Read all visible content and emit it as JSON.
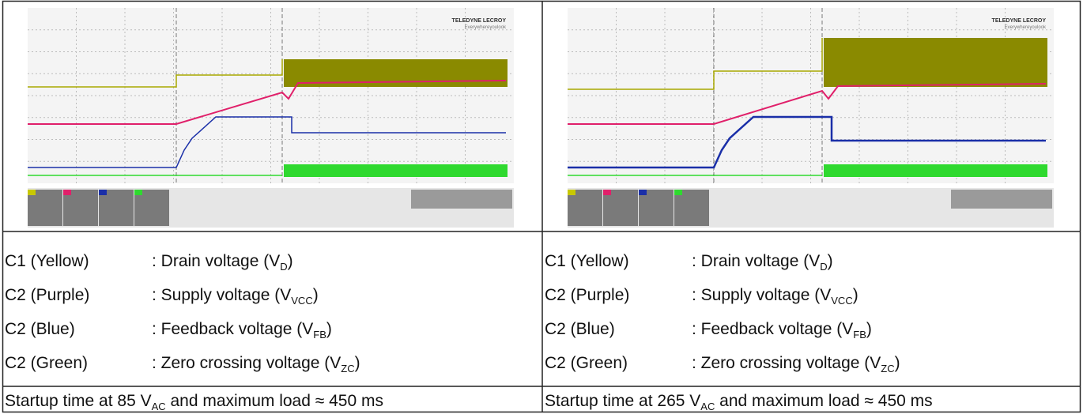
{
  "panels": [
    {
      "scope": {
        "brand": "TELEDYNE LECROY",
        "tagline": "Everywhereyoulook"
      },
      "legend": [
        {
          "channel": "C1 (Yellow)",
          "text": ": Drain voltage (V",
          "sub": "D",
          "tail": ")"
        },
        {
          "channel": "C2 (Purple)",
          "text": ": Supply voltage (V",
          "sub": "VCC",
          "tail": ")"
        },
        {
          "channel": "C2 (Blue)",
          "text": ": Feedback voltage (V",
          "sub": "FB",
          "tail": ")"
        },
        {
          "channel": "C2 (Green)",
          "text": ": Zero crossing voltage (V",
          "sub": "ZC",
          "tail": ")"
        }
      ],
      "caption": {
        "text": "Startup time at 85 V",
        "sub": "AC",
        "tail": " and maximum load ≈ 450 ms"
      }
    },
    {
      "scope": {
        "brand": "TELEDYNE LECROY",
        "tagline": "Everywhereyoulook"
      },
      "legend": [
        {
          "channel": "C1 (Yellow)",
          "text": ": Drain voltage (V",
          "sub": "D",
          "tail": ")"
        },
        {
          "channel": "C2 (Purple)",
          "text": ": Supply voltage (V",
          "sub": "VCC",
          "tail": ")"
        },
        {
          "channel": "C2 (Blue)",
          "text": ": Feedback voltage (V",
          "sub": "FB",
          "tail": ")"
        },
        {
          "channel": "C2 (Green)",
          "text": ": Zero crossing voltage (V",
          "sub": "ZC",
          "tail": ")"
        }
      ],
      "caption": {
        "text": "Startup time at 265 V",
        "sub": "AC",
        "tail": " and maximum load ≈ 450 ms"
      }
    }
  ]
}
